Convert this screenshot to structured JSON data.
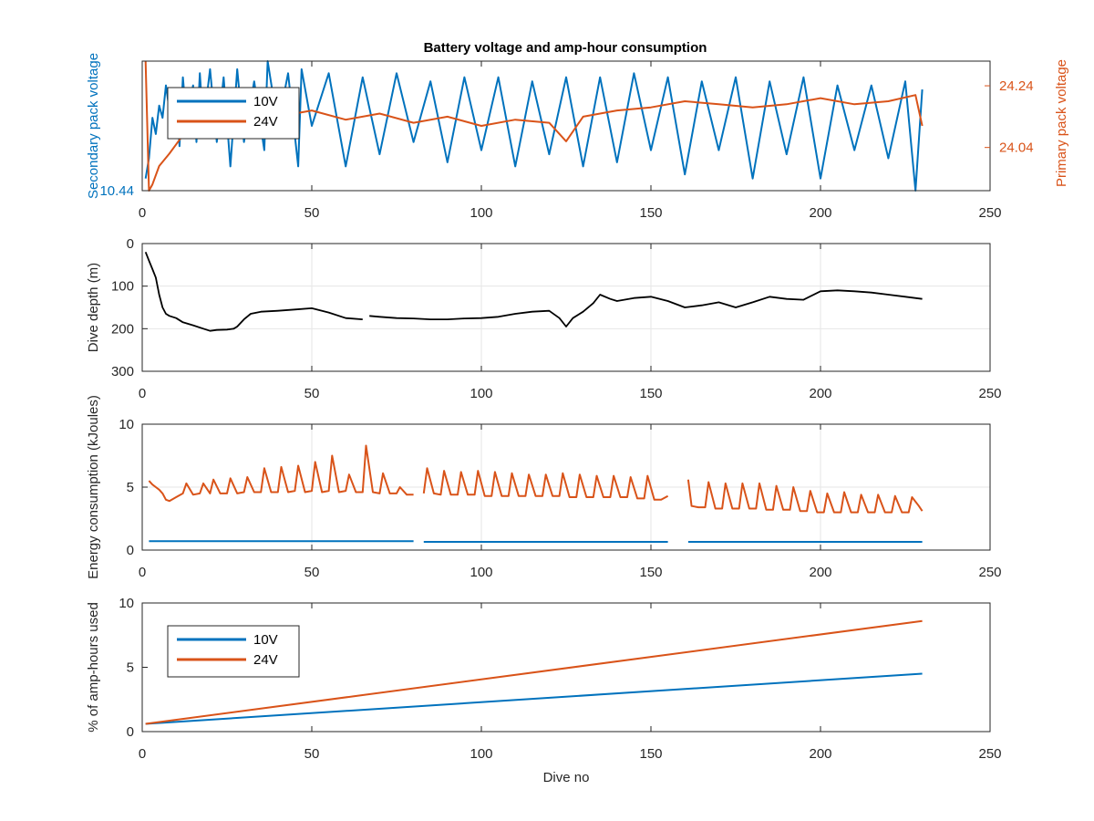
{
  "figure": {
    "title": "Battery voltage and amp-hour consumption"
  },
  "colors": {
    "blue": "#0072bd",
    "orange": "#d95319",
    "black": "#000000",
    "axis": "#262626",
    "grid": "#e6e6e6"
  },
  "chart_data": [
    {
      "type": "line",
      "title": "Battery voltage and amp-hour consumption",
      "ylabel_left": "Secondary pack voltage",
      "ylabel_right": "Primary pack voltage",
      "xlim": [
        0,
        250
      ],
      "xticks": [
        0,
        50,
        100,
        150,
        200,
        250
      ],
      "ylim_left": [
        10.44,
        10.6
      ],
      "yticks_left": [
        10.44
      ],
      "ylim_right": [
        23.9,
        24.32
      ],
      "yticks_right": [
        24.04,
        24.24
      ],
      "grid": false,
      "legend": {
        "position": "top-left",
        "entries": [
          "10V",
          "24V"
        ]
      },
      "series": [
        {
          "name": "10V",
          "axis": "left",
          "x": [
            1,
            2,
            3,
            4,
            5,
            6,
            7,
            8,
            9,
            10,
            11,
            12,
            13,
            14,
            15,
            16,
            17,
            18,
            20,
            22,
            24,
            26,
            28,
            30,
            33,
            36,
            37,
            40,
            43,
            46,
            47,
            50,
            55,
            60,
            65,
            70,
            75,
            80,
            85,
            90,
            95,
            100,
            105,
            110,
            115,
            120,
            125,
            130,
            135,
            140,
            145,
            150,
            155,
            160,
            165,
            170,
            175,
            180,
            185,
            190,
            195,
            200,
            205,
            210,
            215,
            220,
            225,
            228,
            230
          ],
          "values": [
            10.455,
            10.48,
            10.53,
            10.51,
            10.545,
            10.53,
            10.57,
            10.54,
            10.505,
            10.56,
            10.495,
            10.58,
            10.53,
            10.55,
            10.57,
            10.5,
            10.585,
            10.52,
            10.59,
            10.5,
            10.58,
            10.47,
            10.59,
            10.5,
            10.575,
            10.49,
            10.6,
            10.52,
            10.585,
            10.47,
            10.59,
            10.52,
            10.585,
            10.47,
            10.58,
            10.485,
            10.585,
            10.5,
            10.575,
            10.475,
            10.58,
            10.49,
            10.58,
            10.47,
            10.575,
            10.485,
            10.58,
            10.47,
            10.58,
            10.475,
            10.585,
            10.49,
            10.58,
            10.46,
            10.575,
            10.49,
            10.58,
            10.455,
            10.575,
            10.485,
            10.58,
            10.455,
            10.57,
            10.49,
            10.57,
            10.48,
            10.575,
            10.44,
            10.565
          ]
        },
        {
          "name": "24V",
          "axis": "right",
          "x": [
            1,
            2,
            3,
            5,
            8,
            10,
            12,
            15,
            18,
            20,
            25,
            30,
            35,
            40,
            45,
            50,
            60,
            70,
            80,
            90,
            100,
            110,
            120,
            125,
            130,
            140,
            150,
            160,
            170,
            180,
            190,
            200,
            210,
            220,
            228,
            230
          ],
          "values": [
            24.32,
            23.9,
            23.92,
            23.98,
            24.02,
            24.05,
            24.08,
            24.1,
            24.12,
            24.13,
            24.14,
            24.15,
            24.16,
            24.17,
            24.15,
            24.16,
            24.13,
            24.15,
            24.12,
            24.14,
            24.11,
            24.13,
            24.12,
            24.06,
            24.14,
            24.16,
            24.17,
            24.19,
            24.18,
            24.17,
            24.18,
            24.2,
            24.18,
            24.19,
            24.21,
            24.11
          ]
        }
      ]
    },
    {
      "type": "line",
      "ylabel": "Dive depth (m)",
      "xlim": [
        0,
        250
      ],
      "xticks": [
        0,
        50,
        100,
        150,
        200,
        250
      ],
      "ylim": [
        300,
        0
      ],
      "yticks": [
        0,
        100,
        200,
        300
      ],
      "grid": true,
      "series": [
        {
          "x": [
            1,
            2,
            3,
            4,
            5,
            6,
            7,
            8,
            10,
            12,
            15,
            18,
            20,
            22,
            25,
            27,
            28,
            30,
            32,
            35,
            40,
            45,
            50,
            55,
            60,
            65,
            null,
            67,
            70,
            75,
            80,
            85,
            90,
            95,
            100,
            105,
            110,
            115,
            120,
            123,
            125,
            127,
            130,
            133,
            135,
            138,
            140,
            145,
            150,
            155,
            160,
            165,
            170,
            175,
            180,
            185,
            190,
            195,
            200,
            205,
            210,
            215,
            220,
            225,
            230
          ],
          "values": [
            20,
            40,
            60,
            80,
            120,
            150,
            165,
            170,
            175,
            185,
            192,
            200,
            205,
            203,
            202,
            200,
            195,
            178,
            165,
            160,
            158,
            155,
            152,
            162,
            175,
            178,
            null,
            170,
            172,
            175,
            176,
            178,
            178,
            176,
            175,
            172,
            165,
            160,
            158,
            175,
            195,
            175,
            160,
            140,
            120,
            130,
            135,
            128,
            125,
            135,
            150,
            145,
            138,
            150,
            138,
            125,
            130,
            132,
            112,
            110,
            112,
            115,
            120,
            125,
            130
          ]
        }
      ]
    },
    {
      "type": "line",
      "ylabel": "Energy consumption (kJoules)",
      "xlim": [
        0,
        250
      ],
      "xticks": [
        0,
        50,
        100,
        150,
        200,
        250
      ],
      "ylim": [
        0,
        10
      ],
      "yticks": [
        0,
        5,
        10
      ],
      "grid": true,
      "series": [
        {
          "name": "10V",
          "segments": [
            {
              "x": [
                2,
                80
              ],
              "values": [
                0.7,
                0.7
              ]
            },
            {
              "x": [
                83,
                155
              ],
              "values": [
                0.65,
                0.65
              ]
            },
            {
              "x": [
                161,
                230
              ],
              "values": [
                0.65,
                0.65
              ]
            }
          ]
        },
        {
          "name": "24V",
          "segments": [
            {
              "x": [
                2,
                3,
                4,
                5,
                6,
                7,
                8,
                10,
                12,
                13,
                15,
                17,
                18,
                20,
                21,
                23,
                25,
                26,
                28,
                30,
                31,
                33,
                35,
                36,
                38,
                40,
                41,
                43,
                45,
                46,
                48,
                50,
                51,
                53,
                55,
                56,
                58,
                60,
                61,
                63,
                65,
                66,
                68,
                70,
                71,
                73,
                75,
                76,
                78,
                80
              ],
              "values": [
                5.5,
                5.2,
                5.0,
                4.8,
                4.5,
                4.0,
                3.9,
                4.2,
                4.5,
                5.3,
                4.4,
                4.5,
                5.3,
                4.5,
                5.6,
                4.5,
                4.5,
                5.7,
                4.5,
                4.6,
                5.8,
                4.6,
                4.6,
                6.5,
                4.6,
                4.6,
                6.6,
                4.6,
                4.7,
                6.7,
                4.6,
                4.7,
                7.0,
                4.6,
                4.7,
                7.5,
                4.6,
                4.7,
                6.0,
                4.6,
                4.6,
                8.3,
                4.6,
                4.5,
                6.1,
                4.5,
                4.5,
                5.0,
                4.4,
                4.4
              ]
            },
            {
              "x": [
                83,
                84,
                86,
                88,
                89,
                91,
                93,
                94,
                96,
                98,
                99,
                101,
                103,
                104,
                106,
                108,
                109,
                111,
                113,
                114,
                116,
                118,
                119,
                121,
                123,
                124,
                126,
                128,
                129,
                131,
                133,
                134,
                136,
                138,
                139,
                141,
                143,
                144,
                146,
                148,
                149,
                151,
                153,
                155
              ],
              "values": [
                4.5,
                6.5,
                4.5,
                4.4,
                6.3,
                4.4,
                4.4,
                6.2,
                4.4,
                4.4,
                6.3,
                4.3,
                4.3,
                6.2,
                4.3,
                4.3,
                6.1,
                4.3,
                4.3,
                6.0,
                4.3,
                4.3,
                6.0,
                4.3,
                4.3,
                6.1,
                4.2,
                4.2,
                6.0,
                4.2,
                4.2,
                5.9,
                4.2,
                4.2,
                5.9,
                4.2,
                4.2,
                5.8,
                4.1,
                4.1,
                5.9,
                4.0,
                4.0,
                4.3
              ]
            },
            {
              "x": [
                161,
                162,
                164,
                166,
                167,
                169,
                171,
                172,
                174,
                176,
                177,
                179,
                181,
                182,
                184,
                186,
                187,
                189,
                191,
                192,
                194,
                196,
                197,
                199,
                201,
                202,
                204,
                206,
                207,
                209,
                211,
                212,
                214,
                216,
                217,
                219,
                221,
                222,
                224,
                226,
                227,
                229,
                230
              ],
              "values": [
                5.6,
                3.5,
                3.4,
                3.4,
                5.4,
                3.3,
                3.3,
                5.3,
                3.3,
                3.3,
                5.3,
                3.3,
                3.3,
                5.3,
                3.2,
                3.2,
                5.1,
                3.2,
                3.2,
                5.0,
                3.1,
                3.1,
                4.7,
                3.0,
                3.0,
                4.5,
                3.0,
                3.0,
                4.6,
                3.0,
                3.0,
                4.4,
                3.0,
                3.0,
                4.4,
                3.0,
                3.0,
                4.3,
                3.0,
                3.0,
                4.2,
                3.5,
                3.1
              ]
            }
          ]
        }
      ]
    },
    {
      "type": "line",
      "xlabel": "Dive no",
      "ylabel": "% of amp-hours used",
      "xlim": [
        0,
        250
      ],
      "xticks": [
        0,
        50,
        100,
        150,
        200,
        250
      ],
      "ylim": [
        0,
        10
      ],
      "yticks": [
        0,
        5,
        10
      ],
      "grid": false,
      "legend": {
        "position": "bottom-left",
        "entries": [
          "10V",
          "24V"
        ]
      },
      "series": [
        {
          "name": "10V",
          "x": [
            1,
            230
          ],
          "values": [
            0.6,
            4.5
          ]
        },
        {
          "name": "24V",
          "x": [
            1,
            230
          ],
          "values": [
            0.6,
            8.6
          ]
        }
      ]
    }
  ]
}
